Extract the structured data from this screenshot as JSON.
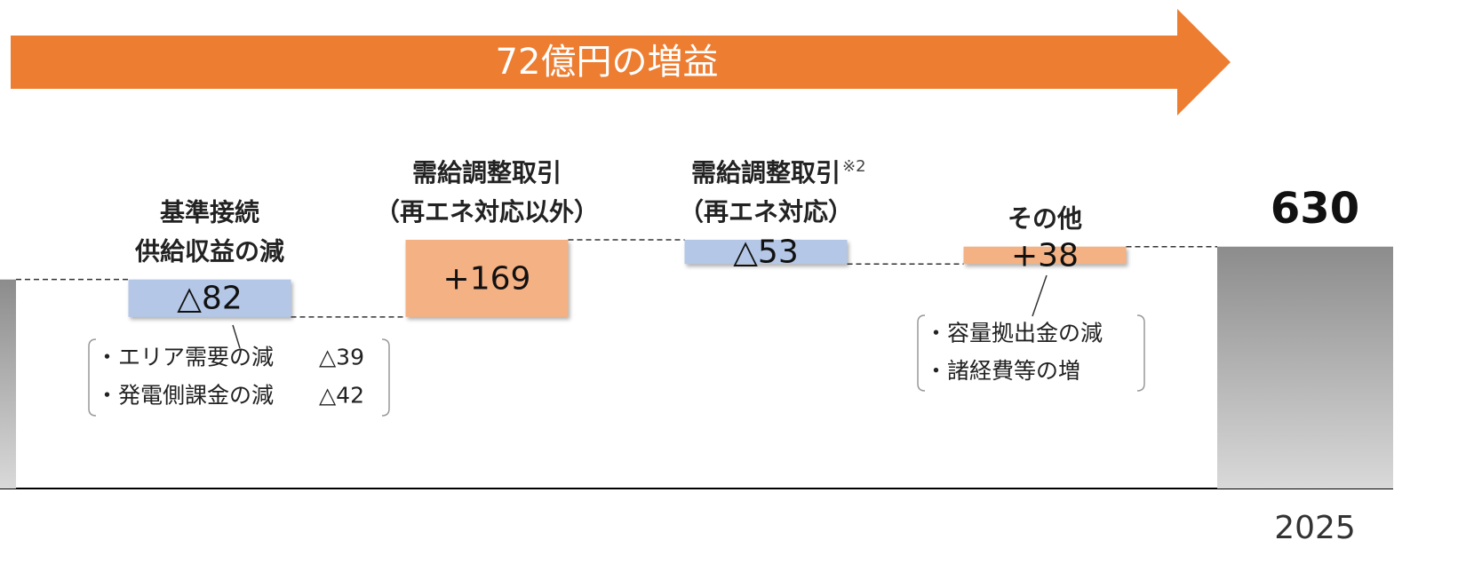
{
  "chart_data": {
    "type": "waterfall",
    "title": "72億円の増益",
    "categories": [
      [
        "基準接続",
        "供給収益の減"
      ],
      [
        "需給調整取引",
        "（再エネ対応以外）"
      ],
      [
        "需給調整取引",
        "（再エネ対応）"
      ],
      [
        "その他"
      ]
    ],
    "category_notes": [
      null,
      null,
      "※2",
      null
    ],
    "values": [
      -82,
      169,
      -53,
      38
    ],
    "value_labels": [
      "△82",
      "+169",
      "△53",
      "+38"
    ],
    "start": 558,
    "total": 630,
    "total_category": "2025",
    "ylim": [
      100,
      680
    ],
    "increase_color": "#f4b183",
    "decrease_color": "#b4c7e7",
    "breakdowns": [
      [
        {
          "label": "・エリア需要の減",
          "value": -39,
          "value_label": "△39"
        },
        {
          "label": "・発電側課金の減",
          "value": -42,
          "value_label": "△42"
        }
      ],
      null,
      null,
      [
        {
          "label": "・容量拠出金の減"
        },
        {
          "label": "・諸経費等の増"
        }
      ]
    ]
  }
}
